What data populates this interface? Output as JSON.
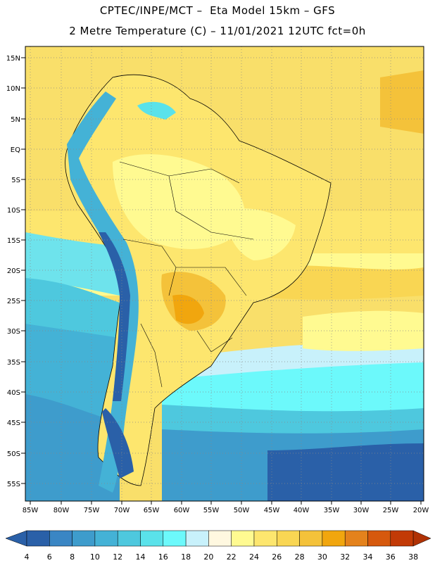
{
  "header": {
    "line1": "CPTEC/INPE/MCT –  Eta Model 15km – GFS",
    "line2": "2 Metre Temperature (C) – 11/01/2021 12UTC fct=0h"
  },
  "map": {
    "lat_labels": [
      "15N",
      "10N",
      "5N",
      "EQ",
      "5S",
      "10S",
      "15S",
      "20S",
      "25S",
      "30S",
      "35S",
      "40S",
      "45S",
      "50S",
      "55S"
    ],
    "lon_labels": [
      "85W",
      "80W",
      "75W",
      "70W",
      "65W",
      "60W",
      "55W",
      "50W",
      "45W",
      "40W",
      "35W",
      "30W",
      "25W",
      "20W"
    ],
    "grid": "dotted",
    "ocean_north_color": "#f9df6a",
    "ocean_south_color": "#3b8fc9"
  },
  "legend": {
    "ticks": [
      "4",
      "6",
      "8",
      "10",
      "12",
      "14",
      "16",
      "18",
      "20",
      "22",
      "24",
      "26",
      "28",
      "30",
      "32",
      "34",
      "36",
      "38"
    ],
    "colors": [
      "#2a60a8",
      "#3a86c4",
      "#3e9ccc",
      "#44b2d6",
      "#4ec8de",
      "#5ae2ea",
      "#6cf9fb",
      "#c8f1fb",
      "#fff8e0",
      "#fffa91",
      "#fde66e",
      "#f9d653",
      "#f4c23a",
      "#f1a60e",
      "#e4821c",
      "#d6590d",
      "#c23a06"
    ],
    "left_arrow_color": "#2a60a8",
    "right_arrow_color": "#b03205"
  }
}
